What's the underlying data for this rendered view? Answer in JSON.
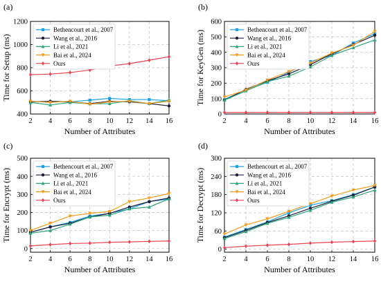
{
  "chart_data": [
    {
      "type": "line",
      "panel_label": "(a)",
      "xlabel": "Number of Attributes",
      "ylabel": "Time for Setup (ms)",
      "x": [
        2,
        4,
        6,
        8,
        10,
        12,
        14,
        16
      ],
      "xlim": [
        2,
        16
      ],
      "ylim": [
        400,
        1200
      ],
      "yticks": [
        400,
        600,
        800,
        1000,
        1200
      ],
      "grid": true,
      "legend": "top-left",
      "series": [
        {
          "name": "Bethencourt et al., 2007",
          "values": [
            510,
            505,
            505,
            520,
            535,
            525,
            525,
            515
          ]
        },
        {
          "name": "Wang et al., 2016",
          "values": [
            505,
            510,
            505,
            490,
            510,
            505,
            490,
            470
          ]
        },
        {
          "name": "Li et al., 2021",
          "values": [
            500,
            478,
            500,
            488,
            490,
            515,
            490,
            520
          ]
        },
        {
          "name": "Bai et al., 2024",
          "values": [
            510,
            500,
            510,
            485,
            505,
            510,
            490,
            510
          ]
        },
        {
          "name": "Ours",
          "values": [
            740,
            745,
            758,
            780,
            815,
            835,
            865,
            895
          ]
        }
      ]
    },
    {
      "type": "line",
      "panel_label": "(b)",
      "xlabel": "Number of Attributes",
      "ylabel": "Time for KeyGen (ms)",
      "x": [
        2,
        4,
        6,
        8,
        10,
        12,
        14,
        16
      ],
      "xlim": [
        2,
        16
      ],
      "ylim": [
        0,
        600
      ],
      "yticks": [
        0,
        100,
        200,
        300,
        400,
        500,
        600
      ],
      "grid": true,
      "legend": "top-left",
      "series": [
        {
          "name": "Bethencourt et al., 2007",
          "values": [
            95,
            155,
            205,
            270,
            340,
            380,
            460,
            520
          ]
        },
        {
          "name": "Wang et al., 2016",
          "values": [
            90,
            160,
            215,
            260,
            320,
            390,
            450,
            510
          ]
        },
        {
          "name": "Li et al., 2021",
          "values": [
            90,
            150,
            210,
            245,
            305,
            380,
            430,
            480
          ]
        },
        {
          "name": "Bai et al., 2024",
          "values": [
            110,
            155,
            220,
            275,
            330,
            395,
            445,
            535
          ]
        },
        {
          "name": "Ours",
          "values": [
            10,
            10,
            10,
            10,
            10,
            10,
            10,
            10
          ]
        }
      ]
    },
    {
      "type": "line",
      "panel_label": "(c)",
      "xlabel": "Number of Attributes",
      "ylabel": "Time for Encrypt (ms)",
      "x": [
        2,
        4,
        6,
        8,
        10,
        12,
        14,
        16
      ],
      "xlim": [
        2,
        16
      ],
      "ylim": [
        -20,
        500
      ],
      "yticks": [
        0,
        100,
        200,
        300,
        400,
        500
      ],
      "grid": true,
      "legend": "top-left",
      "series": [
        {
          "name": "Bethencourt et al., 2007",
          "values": [
            90,
            120,
            145,
            180,
            195,
            220,
            260,
            275
          ]
        },
        {
          "name": "Wang et al., 2016",
          "values": [
            90,
            120,
            140,
            175,
            195,
            230,
            260,
            280
          ]
        },
        {
          "name": "Li et al., 2021",
          "values": [
            85,
            100,
            135,
            175,
            185,
            220,
            230,
            275
          ]
        },
        {
          "name": "Bai et al., 2024",
          "values": [
            100,
            140,
            180,
            195,
            205,
            260,
            280,
            305
          ]
        },
        {
          "name": "Ours",
          "values": [
            15,
            22,
            28,
            30,
            35,
            37,
            40,
            42
          ]
        }
      ]
    },
    {
      "type": "line",
      "panel_label": "(d)",
      "xlabel": "Number of Attributes",
      "ylabel": "Time for Decrypt (ms)",
      "x": [
        2,
        4,
        6,
        8,
        10,
        12,
        14,
        16
      ],
      "xlim": [
        2,
        16
      ],
      "ylim": [
        -10,
        300
      ],
      "yticks": [
        0,
        60,
        120,
        180,
        240,
        300
      ],
      "grid": true,
      "legend": "top-left",
      "series": [
        {
          "name": "Bethencourt et al., 2007",
          "values": [
            40,
            65,
            90,
            120,
            145,
            160,
            180,
            205
          ]
        },
        {
          "name": "Wang et al., 2016",
          "values": [
            38,
            62,
            88,
            110,
            135,
            158,
            178,
            205
          ]
        },
        {
          "name": "Li et al., 2021",
          "values": [
            35,
            58,
            85,
            105,
            128,
            155,
            172,
            195
          ]
        },
        {
          "name": "Bai et al., 2024",
          "values": [
            50,
            80,
            100,
            125,
            150,
            175,
            195,
            210
          ]
        },
        {
          "name": "Ours",
          "values": [
            5,
            10,
            13,
            16,
            20,
            23,
            25,
            27
          ]
        }
      ]
    }
  ],
  "series_colors": [
    "#1ba1e2",
    "#1c1c3a",
    "#2ca57a",
    "#f59a1a",
    "#e8414f"
  ],
  "series_markers": [
    "square",
    "circle",
    "triangle",
    "triangle-down",
    "diamond"
  ]
}
